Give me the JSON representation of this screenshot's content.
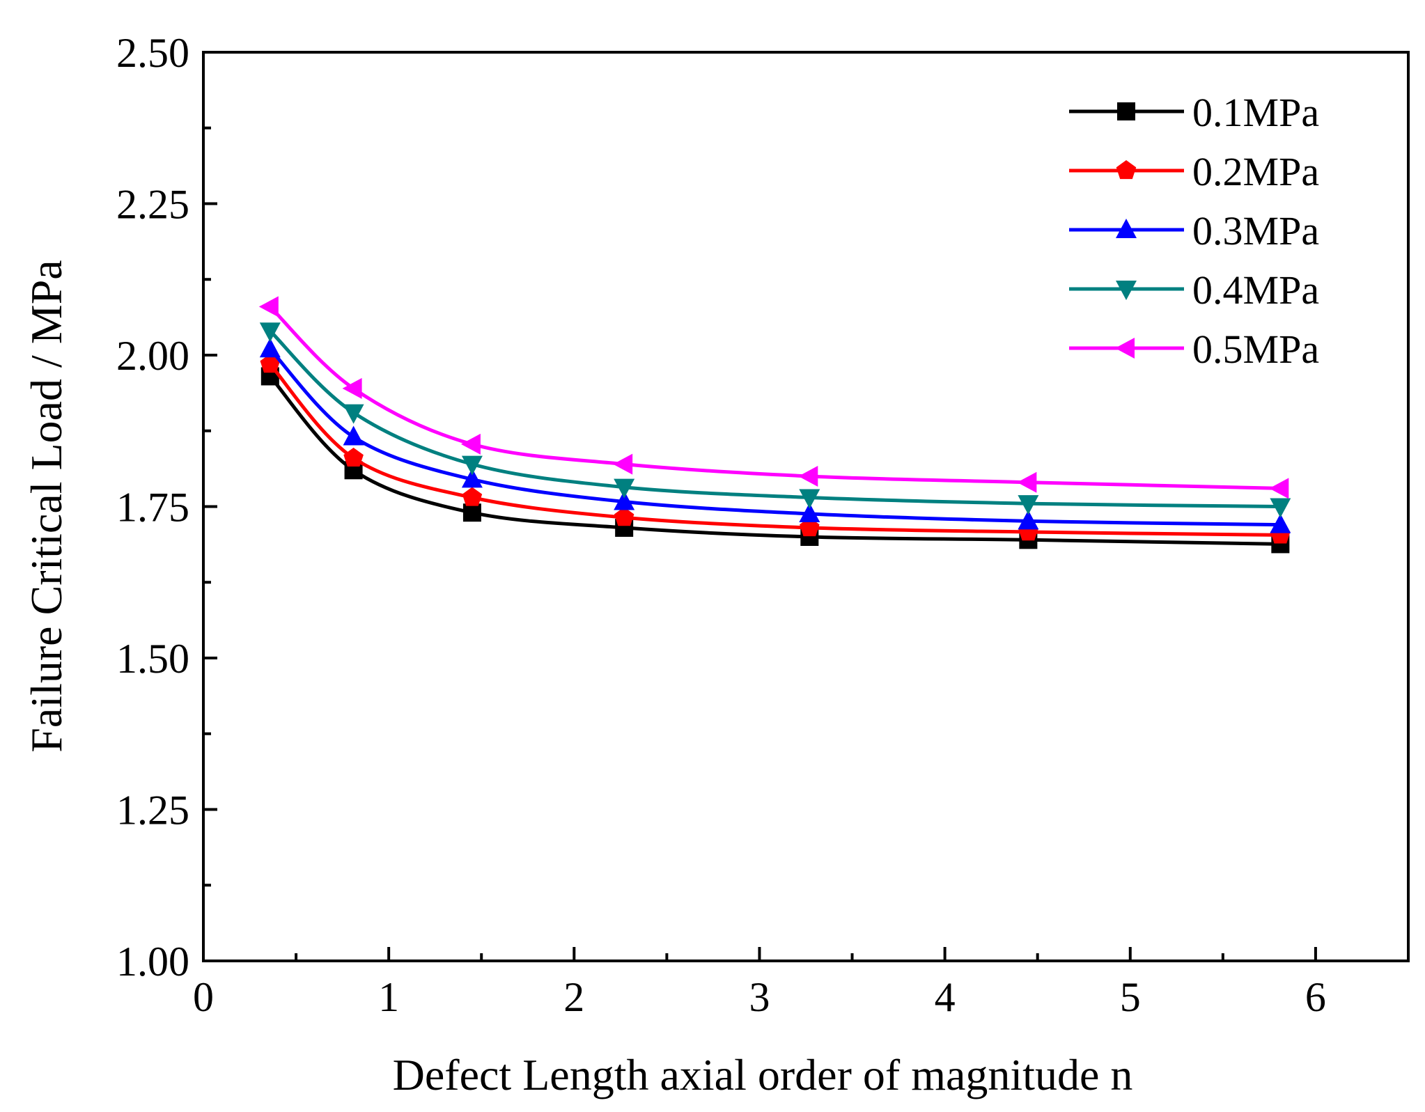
{
  "chart_data": {
    "type": "line",
    "title": "",
    "xlabel": "Defect Length axial order of magnitude n",
    "ylabel": "Failure Critical Load / MPa",
    "xlim": [
      0,
      6.5
    ],
    "ylim": [
      1.0,
      2.5
    ],
    "x_ticks": [
      0,
      1,
      2,
      3,
      4,
      5,
      6
    ],
    "x_tick_labels": [
      "0",
      "1",
      "2",
      "3",
      "4",
      "5",
      "6"
    ],
    "x_minor_ticks": [
      0.5,
      1.5,
      2.5,
      3.5,
      4.5,
      5.5
    ],
    "y_ticks": [
      1.0,
      1.25,
      1.5,
      1.75,
      2.0,
      2.25,
      2.5
    ],
    "y_tick_labels": [
      "1.00",
      "1.25",
      "1.50",
      "1.75",
      "2.00",
      "2.25",
      "2.50"
    ],
    "y_minor_ticks": [
      1.125,
      1.375,
      1.625,
      1.875,
      2.125,
      2.375
    ],
    "grid": false,
    "legend_position": "top-right",
    "x": [
      0.36,
      0.81,
      1.45,
      2.27,
      3.27,
      4.45,
      5.81
    ],
    "series": [
      {
        "name": "0.1MPa",
        "color": "#000000",
        "marker": "square",
        "values": [
          1.965,
          1.81,
          1.74,
          1.715,
          1.7,
          1.695,
          1.688
        ]
      },
      {
        "name": "0.2MPa",
        "color": "#ff0000",
        "marker": "pentagon",
        "values": [
          1.985,
          1.83,
          1.765,
          1.732,
          1.715,
          1.708,
          1.703
        ]
      },
      {
        "name": "0.3MPa",
        "color": "#0000ff",
        "marker": "triangle-up",
        "values": [
          2.01,
          1.865,
          1.795,
          1.758,
          1.738,
          1.726,
          1.72
        ]
      },
      {
        "name": "0.4MPa",
        "color": "#008080",
        "marker": "triangle-down",
        "values": [
          2.04,
          1.905,
          1.82,
          1.782,
          1.765,
          1.755,
          1.75
        ]
      },
      {
        "name": "0.5MPa",
        "color": "#ff00ff",
        "marker": "triangle-left",
        "values": [
          2.08,
          1.945,
          1.853,
          1.82,
          1.8,
          1.79,
          1.78
        ]
      }
    ]
  }
}
